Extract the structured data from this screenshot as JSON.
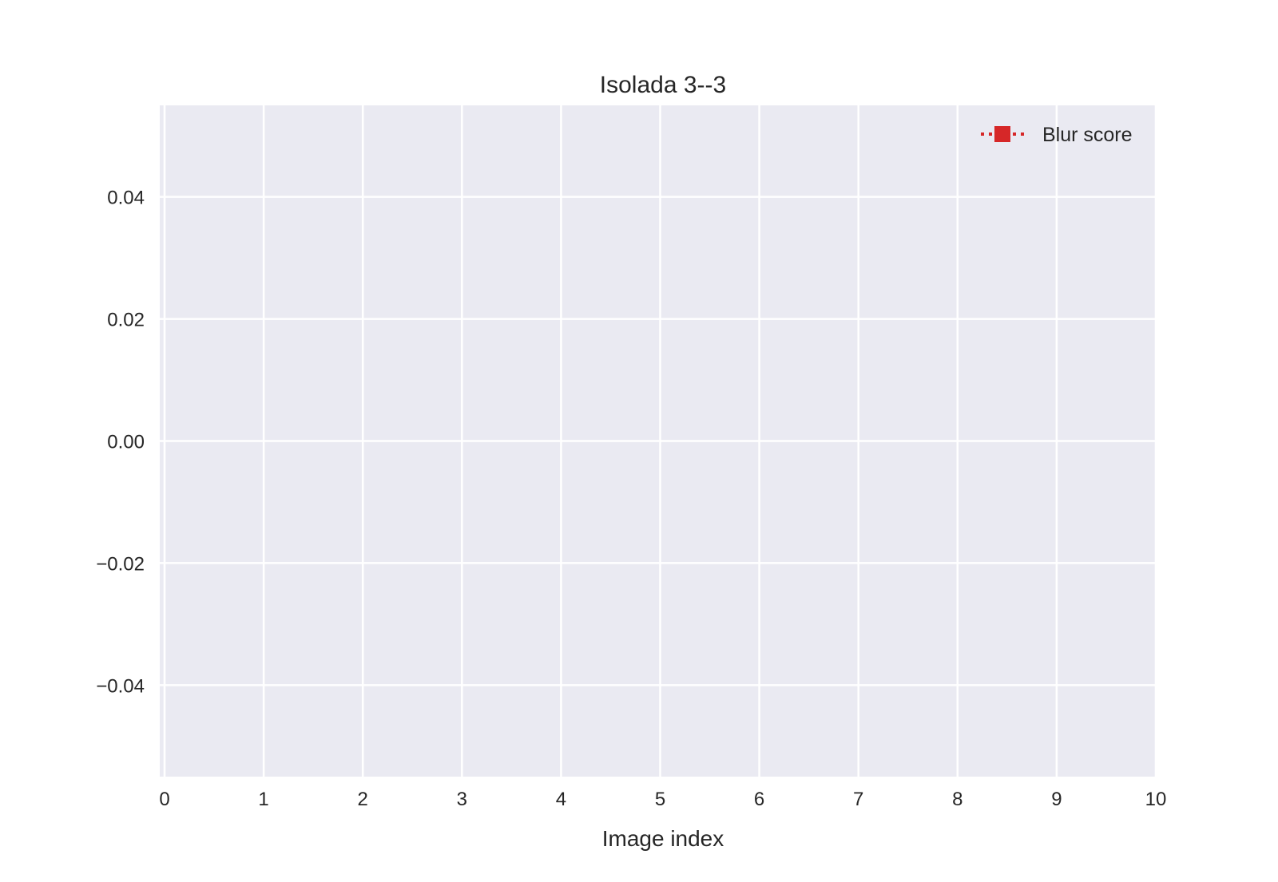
{
  "chart_data": {
    "type": "line",
    "title": "Isolada 3--3",
    "xlabel": "Image index",
    "ylabel": "",
    "xlim": [
      0,
      10
    ],
    "ylim": [
      -0.055,
      0.055
    ],
    "x_ticks": [
      0,
      1,
      2,
      3,
      4,
      5,
      6,
      7,
      8,
      9,
      10
    ],
    "x_tick_labels": [
      "0",
      "1",
      "2",
      "3",
      "4",
      "5",
      "6",
      "7",
      "8",
      "9",
      "10"
    ],
    "y_ticks": [
      0.04,
      0.02,
      0.0,
      -0.02,
      -0.04
    ],
    "y_tick_labels": [
      "0.04",
      "0.02",
      "0.00",
      "−0.02",
      "−0.04"
    ],
    "grid": true,
    "legend_position": "top-right",
    "series": [
      {
        "name": "Blur score",
        "color": "#d62728",
        "line_style": "dotted",
        "marker": "square",
        "x": [],
        "y": []
      }
    ]
  },
  "colors": {
    "plot_background": "#eaeaf2",
    "grid": "#ffffff",
    "text": "#262626"
  }
}
